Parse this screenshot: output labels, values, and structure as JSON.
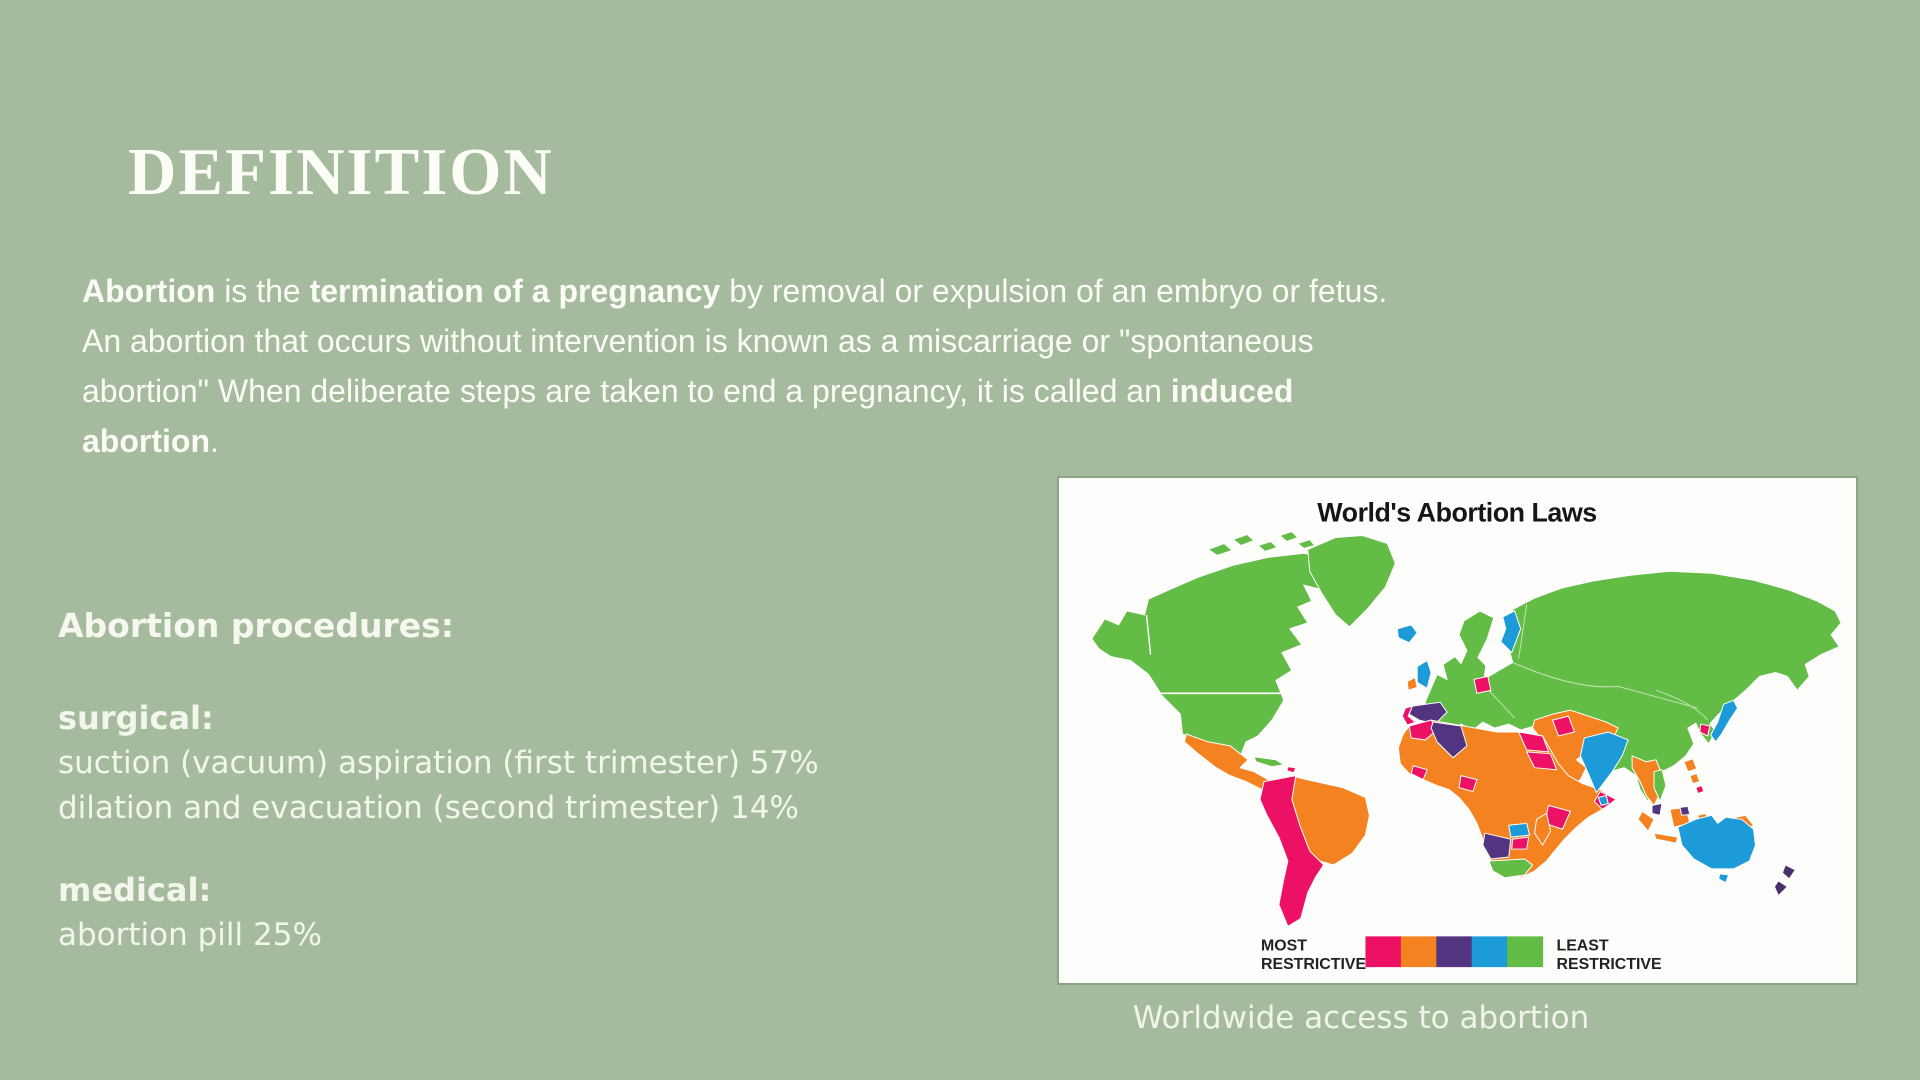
{
  "slide": {
    "title": "DEFINITION"
  },
  "definition_paragraph": {
    "lines": [
      [
        {
          "text": "Abortion",
          "bold": true
        },
        {
          "text": " is the ",
          "bold": false
        },
        {
          "text": "termination of a pregnancy",
          "bold": true
        },
        {
          "text": " by removal or expulsion of an embryo or fetus.",
          "bold": false
        }
      ],
      [
        {
          "text": "An abortion that occurs without intervention is known as a miscarriage or \"spontaneous",
          "bold": false
        }
      ],
      [
        {
          "text": "abortion\" When deliberate steps are taken to end a pregnancy, it is called an ",
          "bold": false
        },
        {
          "text": "induced",
          "bold": true
        }
      ],
      [
        {
          "text": "abortion",
          "bold": true
        },
        {
          "text": ".",
          "bold": false
        }
      ]
    ]
  },
  "procedures": {
    "heading": "Abortion procedures:",
    "sections": [
      {
        "label": "surgical:",
        "items": [
          "suction (vacuum) aspiration (first trimester) 57%",
          "dilation and evacuation (second trimester) 14%"
        ]
      },
      {
        "label": "medical:",
        "items": [
          "abortion pill 25%"
        ]
      }
    ]
  },
  "map": {
    "title": "World's Abortion Laws",
    "caption": "Worldwide access to abortion",
    "legend": {
      "left_label_lines": [
        "MOST",
        "RESTRICTIVE"
      ],
      "right_label_lines": [
        "LEAST",
        "RESTRICTIVE"
      ],
      "colors": [
        "#EC1164",
        "#F58220",
        "#533480",
        "#1C9BD8",
        "#62BC46"
      ]
    }
  },
  "theme": {
    "background": "#a6ba9d",
    "text": "#fbfcf6",
    "map_panel_background": "#fdfefc",
    "map_green": "#62BC46",
    "map_pink": "#EC1164",
    "map_orange": "#F58220",
    "map_purple": "#533480",
    "map_blue": "#1C9BD8",
    "map_dark_purple": "#47306B"
  }
}
